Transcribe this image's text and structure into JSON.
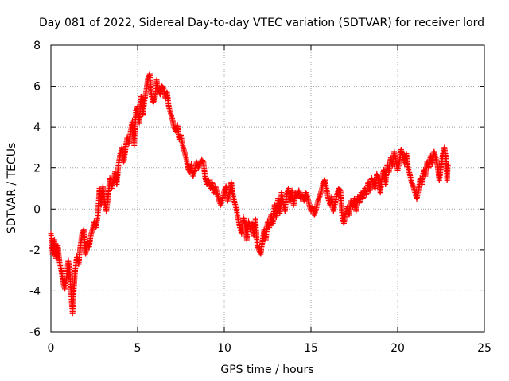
{
  "chart_data": {
    "type": "scatter",
    "title": "Day 081 of 2022, Sidereal Day-to-day VTEC variation (SDTVAR) for receiver lord",
    "xlabel": "GPS time / hours",
    "ylabel": "SDTVAR / TECUs",
    "xlim": [
      0,
      25
    ],
    "ylim": [
      -6,
      8
    ],
    "xticks": [
      0,
      5,
      10,
      15,
      20,
      25
    ],
    "yticks": [
      -6,
      -4,
      -2,
      0,
      2,
      4,
      6,
      8
    ],
    "grid": true,
    "marker": "+",
    "color": "#ff0000",
    "series": [
      {
        "name": "SDTVAR",
        "points": [
          [
            0.0,
            -1.2
          ],
          [
            0.1,
            -2.2
          ],
          [
            0.2,
            -1.5
          ],
          [
            0.3,
            -2.4
          ],
          [
            0.4,
            -1.8
          ],
          [
            0.5,
            -2.6
          ],
          [
            0.6,
            -3.0
          ],
          [
            0.7,
            -3.6
          ],
          [
            0.8,
            -3.9
          ],
          [
            0.9,
            -3.4
          ],
          [
            1.0,
            -2.5
          ],
          [
            1.1,
            -3.2
          ],
          [
            1.2,
            -4.6
          ],
          [
            1.25,
            -5.1
          ],
          [
            1.3,
            -4.2
          ],
          [
            1.4,
            -3.0
          ],
          [
            1.5,
            -2.3
          ],
          [
            1.6,
            -2.7
          ],
          [
            1.7,
            -1.8
          ],
          [
            1.8,
            -1.2
          ],
          [
            1.9,
            -1.0
          ],
          [
            2.0,
            -2.2
          ],
          [
            2.1,
            -1.6
          ],
          [
            2.2,
            -1.9
          ],
          [
            2.3,
            -1.3
          ],
          [
            2.4,
            -1.0
          ],
          [
            2.5,
            -0.6
          ],
          [
            2.6,
            -0.9
          ],
          [
            2.7,
            -0.4
          ],
          [
            2.8,
            1.0
          ],
          [
            2.9,
            0.2
          ],
          [
            3.0,
            1.1
          ],
          [
            3.1,
            0.3
          ],
          [
            3.2,
            -0.1
          ],
          [
            3.3,
            0.6
          ],
          [
            3.4,
            1.5
          ],
          [
            3.5,
            1.0
          ],
          [
            3.6,
            1.4
          ],
          [
            3.7,
            1.8
          ],
          [
            3.8,
            1.2
          ],
          [
            3.9,
            2.2
          ],
          [
            4.0,
            2.7
          ],
          [
            4.1,
            3.0
          ],
          [
            4.2,
            2.3
          ],
          [
            4.3,
            2.9
          ],
          [
            4.4,
            3.5
          ],
          [
            4.5,
            3.2
          ],
          [
            4.6,
            3.8
          ],
          [
            4.7,
            4.3
          ],
          [
            4.8,
            3.1
          ],
          [
            4.9,
            4.8
          ],
          [
            5.0,
            5.0
          ],
          [
            5.1,
            4.2
          ],
          [
            5.2,
            5.5
          ],
          [
            5.3,
            4.6
          ],
          [
            5.4,
            5.3
          ],
          [
            5.5,
            5.8
          ],
          [
            5.6,
            6.4
          ],
          [
            5.7,
            6.6
          ],
          [
            5.8,
            5.5
          ],
          [
            5.9,
            5.2
          ],
          [
            6.0,
            5.4
          ],
          [
            6.1,
            6.3
          ],
          [
            6.2,
            5.8
          ],
          [
            6.3,
            5.6
          ],
          [
            6.4,
            6.0
          ],
          [
            6.5,
            5.9
          ],
          [
            6.6,
            5.4
          ],
          [
            6.7,
            5.7
          ],
          [
            6.8,
            5.0
          ],
          [
            6.9,
            4.7
          ],
          [
            7.0,
            4.4
          ],
          [
            7.1,
            4.0
          ],
          [
            7.2,
            3.8
          ],
          [
            7.3,
            4.1
          ],
          [
            7.4,
            3.4
          ],
          [
            7.5,
            3.6
          ],
          [
            7.6,
            3.1
          ],
          [
            7.7,
            2.8
          ],
          [
            7.8,
            2.5
          ],
          [
            7.9,
            2.0
          ],
          [
            8.0,
            1.8
          ],
          [
            8.1,
            2.2
          ],
          [
            8.2,
            1.6
          ],
          [
            8.3,
            1.9
          ],
          [
            8.4,
            2.3
          ],
          [
            8.5,
            2.0
          ],
          [
            8.6,
            2.2
          ],
          [
            8.7,
            2.4
          ],
          [
            8.8,
            2.3
          ],
          [
            8.9,
            1.5
          ],
          [
            9.0,
            1.2
          ],
          [
            9.1,
            1.4
          ],
          [
            9.2,
            1.0
          ],
          [
            9.3,
            1.3
          ],
          [
            9.4,
            0.8
          ],
          [
            9.5,
            1.1
          ],
          [
            9.6,
            0.7
          ],
          [
            9.7,
            0.4
          ],
          [
            9.8,
            0.2
          ],
          [
            9.9,
            0.5
          ],
          [
            10.0,
            0.9
          ],
          [
            10.1,
            1.1
          ],
          [
            10.2,
            0.4
          ],
          [
            10.3,
            0.8
          ],
          [
            10.4,
            1.3
          ],
          [
            10.5,
            0.7
          ],
          [
            10.6,
            0.3
          ],
          [
            10.7,
            0.0
          ],
          [
            10.8,
            -0.5
          ],
          [
            10.9,
            -0.9
          ],
          [
            11.0,
            -1.2
          ],
          [
            11.1,
            -0.4
          ],
          [
            11.2,
            -0.8
          ],
          [
            11.3,
            -1.5
          ],
          [
            11.4,
            -0.6
          ],
          [
            11.5,
            -1.0
          ],
          [
            11.6,
            -0.7
          ],
          [
            11.7,
            -1.3
          ],
          [
            11.8,
            -0.5
          ],
          [
            11.9,
            -1.8
          ],
          [
            12.0,
            -2.0
          ],
          [
            12.1,
            -2.2
          ],
          [
            12.2,
            -1.6
          ],
          [
            12.3,
            -1.0
          ],
          [
            12.4,
            -1.5
          ],
          [
            12.5,
            -0.6
          ],
          [
            12.6,
            -0.9
          ],
          [
            12.7,
            -0.3
          ],
          [
            12.8,
            -0.7
          ],
          [
            12.9,
            0.2
          ],
          [
            13.0,
            -0.4
          ],
          [
            13.1,
            0.5
          ],
          [
            13.2,
            -0.2
          ],
          [
            13.3,
            0.8
          ],
          [
            13.4,
            0.3
          ],
          [
            13.5,
            -0.1
          ],
          [
            13.6,
            0.7
          ],
          [
            13.7,
            1.0
          ],
          [
            13.8,
            0.4
          ],
          [
            13.9,
            0.9
          ],
          [
            14.0,
            0.2
          ],
          [
            14.1,
            0.8
          ],
          [
            14.2,
            0.6
          ],
          [
            14.3,
            0.9
          ],
          [
            14.4,
            0.5
          ],
          [
            14.5,
            0.7
          ],
          [
            14.6,
            0.4
          ],
          [
            14.7,
            0.8
          ],
          [
            14.8,
            0.6
          ],
          [
            14.9,
            0.2
          ],
          [
            15.0,
            -0.1
          ],
          [
            15.1,
            0.1
          ],
          [
            15.2,
            -0.3
          ],
          [
            15.3,
            0.0
          ],
          [
            15.4,
            0.4
          ],
          [
            15.5,
            0.6
          ],
          [
            15.6,
            0.9
          ],
          [
            15.7,
            1.3
          ],
          [
            15.8,
            1.4
          ],
          [
            15.9,
            1.0
          ],
          [
            16.0,
            0.5
          ],
          [
            16.1,
            0.2
          ],
          [
            16.2,
            0.6
          ],
          [
            16.3,
            -0.1
          ],
          [
            16.4,
            0.3
          ],
          [
            16.5,
            0.7
          ],
          [
            16.6,
            1.0
          ],
          [
            16.7,
            0.9
          ],
          [
            16.8,
            -0.4
          ],
          [
            16.9,
            -0.7
          ],
          [
            17.0,
            -0.2
          ],
          [
            17.1,
            0.1
          ],
          [
            17.2,
            -0.3
          ],
          [
            17.3,
            0.4
          ],
          [
            17.4,
            0.1
          ],
          [
            17.5,
            0.5
          ],
          [
            17.6,
            -0.1
          ],
          [
            17.7,
            0.6
          ],
          [
            17.8,
            0.3
          ],
          [
            17.9,
            0.8
          ],
          [
            18.0,
            0.5
          ],
          [
            18.1,
            1.0
          ],
          [
            18.2,
            0.7
          ],
          [
            18.3,
            1.3
          ],
          [
            18.4,
            0.9
          ],
          [
            18.5,
            1.5
          ],
          [
            18.6,
            1.2
          ],
          [
            18.7,
            1.0
          ],
          [
            18.8,
            1.7
          ],
          [
            18.9,
            1.4
          ],
          [
            19.0,
            0.8
          ],
          [
            19.1,
            1.6
          ],
          [
            19.2,
            1.9
          ],
          [
            19.3,
            1.2
          ],
          [
            19.4,
            2.2
          ],
          [
            19.5,
            1.8
          ],
          [
            19.6,
            2.5
          ],
          [
            19.7,
            2.1
          ],
          [
            19.8,
            2.8
          ],
          [
            19.9,
            2.4
          ],
          [
            20.0,
            1.9
          ],
          [
            20.1,
            2.3
          ],
          [
            20.2,
            2.9
          ],
          [
            20.3,
            2.6
          ],
          [
            20.4,
            2.2
          ],
          [
            20.5,
            2.7
          ],
          [
            20.6,
            2.0
          ],
          [
            20.7,
            1.7
          ],
          [
            20.8,
            1.3
          ],
          [
            20.9,
            1.1
          ],
          [
            21.0,
            0.8
          ],
          [
            21.1,
            0.5
          ],
          [
            21.2,
            0.9
          ],
          [
            21.3,
            1.5
          ],
          [
            21.4,
            1.2
          ],
          [
            21.5,
            1.9
          ],
          [
            21.6,
            1.6
          ],
          [
            21.7,
            2.3
          ],
          [
            21.8,
            2.0
          ],
          [
            21.9,
            2.6
          ],
          [
            22.0,
            2.2
          ],
          [
            22.1,
            2.8
          ],
          [
            22.2,
            2.5
          ],
          [
            22.3,
            2.1
          ],
          [
            22.4,
            1.4
          ],
          [
            22.5,
            2.0
          ],
          [
            22.6,
            2.7
          ],
          [
            22.7,
            3.0
          ],
          [
            22.8,
            2.4
          ],
          [
            22.85,
            1.4
          ],
          [
            22.9,
            2.2
          ]
        ]
      }
    ]
  }
}
